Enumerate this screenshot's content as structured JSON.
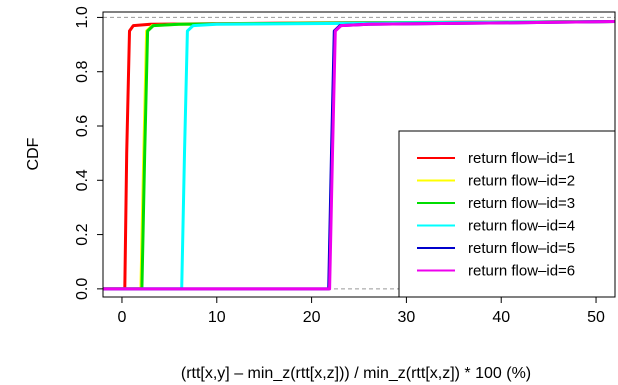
{
  "chart_data": {
    "type": "line",
    "title": "",
    "xlabel": "(rtt[x,y] – min_z(rtt[x,z])) / min_z(rtt[x,z]) * 100 (%)",
    "ylabel": "CDF",
    "xlim": [
      -2,
      52
    ],
    "ylim": [
      -0.03,
      1.02
    ],
    "x_ticks": [
      0,
      10,
      20,
      30,
      40,
      50
    ],
    "y_ticks": [
      0.0,
      0.2,
      0.4,
      0.6,
      0.8,
      1.0
    ],
    "x_tick_labels": [
      "0",
      "10",
      "20",
      "30",
      "40",
      "50"
    ],
    "y_tick_labels": [
      "0.0",
      "0.2",
      "0.4",
      "0.6",
      "0.8",
      "1.0"
    ],
    "reference_lines_y": [
      0,
      1
    ],
    "grid": false,
    "legend_position": "bottom-right",
    "series": [
      {
        "name": "return flow–id=1",
        "color": "#ff0000",
        "x": [
          -2,
          0.3,
          0.5,
          0.8,
          1.2,
          3,
          20,
          52
        ],
        "y": [
          0,
          0,
          0.5,
          0.95,
          0.97,
          0.975,
          0.98,
          0.985
        ]
      },
      {
        "name": "return flow–id=2",
        "color": "#ffff00",
        "x": [
          -2,
          2.0,
          2.3,
          2.6,
          3.2,
          6,
          25,
          52
        ],
        "y": [
          0,
          0,
          0.5,
          0.95,
          0.97,
          0.975,
          0.98,
          0.985
        ]
      },
      {
        "name": "return flow–id=3",
        "color": "#00dd00",
        "x": [
          -2,
          2.1,
          2.4,
          2.7,
          3.3,
          6,
          25,
          52
        ],
        "y": [
          0,
          0,
          0.5,
          0.95,
          0.97,
          0.975,
          0.98,
          0.985
        ]
      },
      {
        "name": "return flow–id=4",
        "color": "#00ffff",
        "x": [
          -2,
          6.3,
          6.6,
          6.9,
          7.5,
          10,
          30,
          52
        ],
        "y": [
          0,
          0,
          0.5,
          0.95,
          0.97,
          0.975,
          0.98,
          0.985
        ]
      },
      {
        "name": "return flow–id=5",
        "color": "#0000cc",
        "x": [
          -2,
          21.8,
          22.1,
          22.4,
          23.0,
          26,
          40,
          52
        ],
        "y": [
          0,
          0,
          0.5,
          0.95,
          0.97,
          0.975,
          0.98,
          0.985
        ]
      },
      {
        "name": "return flow–id=6",
        "color": "#ee00ee",
        "x": [
          -2,
          21.9,
          22.2,
          22.5,
          23.1,
          26,
          40,
          52
        ],
        "y": [
          0,
          0,
          0.5,
          0.95,
          0.97,
          0.975,
          0.98,
          0.985
        ]
      }
    ]
  }
}
